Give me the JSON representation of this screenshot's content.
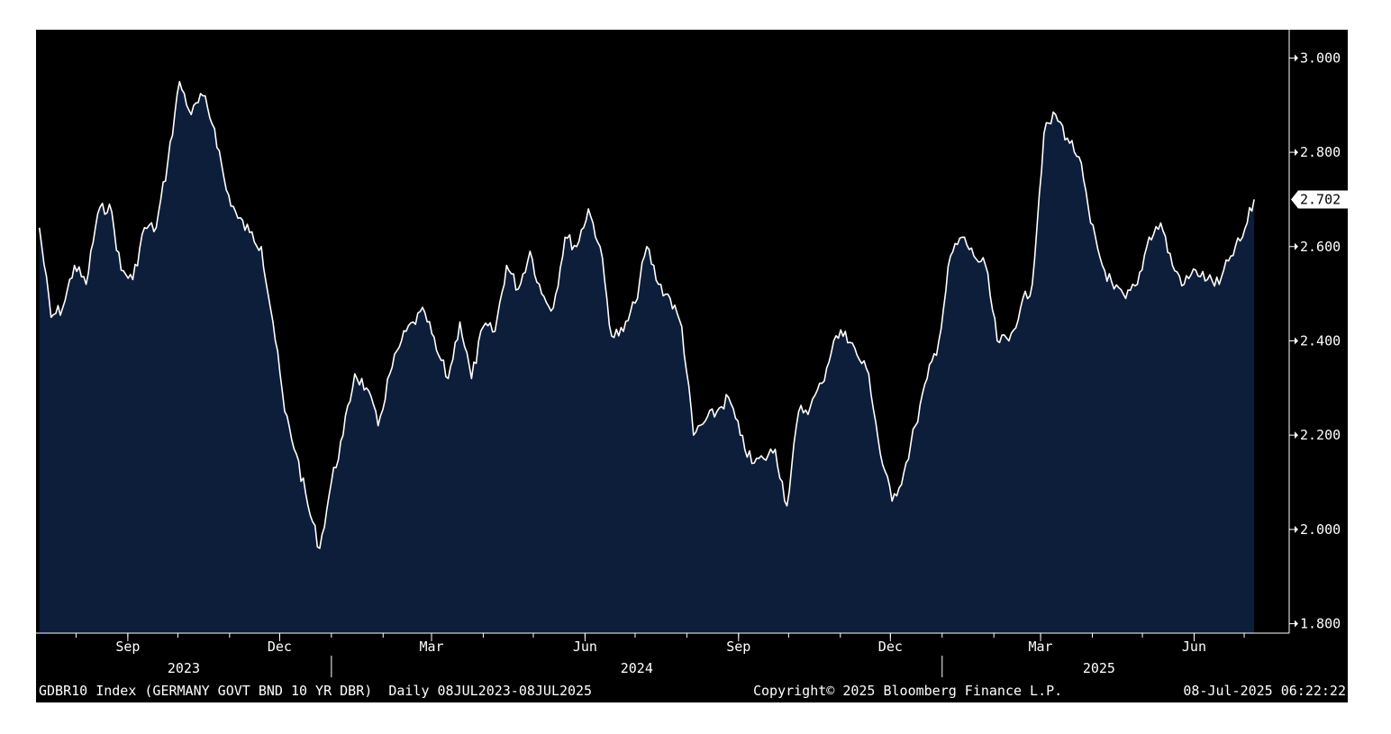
{
  "chart_data": {
    "type": "area",
    "title": "",
    "xlabel": "",
    "ylabel": "",
    "ylim": [
      1.78,
      3.06
    ],
    "y_ticks": [
      1.8,
      2.0,
      2.2,
      2.4,
      2.6,
      2.8,
      3.0
    ],
    "y_tick_labels": [
      "1.800",
      "2.000",
      "2.200",
      "2.400",
      "2.600",
      "2.800",
      "3.000"
    ],
    "x_range": [
      "2023-07-08",
      "2025-07-08"
    ],
    "month_labels": [
      {
        "date": "2023-09-01",
        "label": "Sep"
      },
      {
        "date": "2023-12-01",
        "label": "Dec"
      },
      {
        "date": "2024-03-01",
        "label": "Mar"
      },
      {
        "date": "2024-06-01",
        "label": "Jun"
      },
      {
        "date": "2024-09-01",
        "label": "Sep"
      },
      {
        "date": "2024-12-01",
        "label": "Dec"
      },
      {
        "date": "2025-03-01",
        "label": "Mar"
      },
      {
        "date": "2025-06-01",
        "label": "Jun"
      }
    ],
    "year_labels": [
      {
        "label": "2023",
        "start": "2023-07-08",
        "end": "2024-01-01"
      },
      {
        "label": "2024",
        "start": "2024-01-01",
        "end": "2025-01-01"
      },
      {
        "label": "2025",
        "start": "2025-01-01",
        "end": "2025-07-08"
      }
    ],
    "series": [
      {
        "name": "",
        "color": "#ffffff",
        "fill": "#0d1e3b",
        "x": [
          "2023-07-10",
          "2023-07-17",
          "2023-07-24",
          "2023-07-31",
          "2023-08-07",
          "2023-08-14",
          "2023-08-21",
          "2023-08-28",
          "2023-09-04",
          "2023-09-11",
          "2023-09-18",
          "2023-09-25",
          "2023-10-02",
          "2023-10-09",
          "2023-10-16",
          "2023-10-23",
          "2023-10-30",
          "2023-11-06",
          "2023-11-13",
          "2023-11-20",
          "2023-11-27",
          "2023-12-04",
          "2023-12-11",
          "2023-12-18",
          "2023-12-25",
          "2024-01-01",
          "2024-01-08",
          "2024-01-15",
          "2024-01-22",
          "2024-01-29",
          "2024-02-05",
          "2024-02-12",
          "2024-02-19",
          "2024-02-26",
          "2024-03-04",
          "2024-03-11",
          "2024-03-18",
          "2024-03-25",
          "2024-04-01",
          "2024-04-08",
          "2024-04-15",
          "2024-04-22",
          "2024-04-29",
          "2024-05-06",
          "2024-05-13",
          "2024-05-20",
          "2024-05-27",
          "2024-06-03",
          "2024-06-10",
          "2024-06-17",
          "2024-06-24",
          "2024-07-01",
          "2024-07-08",
          "2024-07-15",
          "2024-07-22",
          "2024-07-29",
          "2024-08-05",
          "2024-08-12",
          "2024-08-19",
          "2024-08-26",
          "2024-09-02",
          "2024-09-09",
          "2024-09-16",
          "2024-09-23",
          "2024-09-30",
          "2024-10-07",
          "2024-10-14",
          "2024-10-21",
          "2024-10-28",
          "2024-11-04",
          "2024-11-11",
          "2024-11-18",
          "2024-11-25",
          "2024-12-02",
          "2024-12-09",
          "2024-12-16",
          "2024-12-23",
          "2024-12-30",
          "2025-01-06",
          "2025-01-13",
          "2025-01-20",
          "2025-01-27",
          "2025-02-03",
          "2025-02-10",
          "2025-02-17",
          "2025-02-24",
          "2025-03-03",
          "2025-03-10",
          "2025-03-17",
          "2025-03-24",
          "2025-03-31",
          "2025-04-07",
          "2025-04-14",
          "2025-04-21",
          "2025-04-28",
          "2025-05-05",
          "2025-05-12",
          "2025-05-19",
          "2025-05-26",
          "2025-06-02",
          "2025-06-09",
          "2025-06-16",
          "2025-06-23",
          "2025-06-30",
          "2025-07-07"
        ],
        "values": [
          2.64,
          2.45,
          2.47,
          2.56,
          2.52,
          2.67,
          2.69,
          2.55,
          2.53,
          2.64,
          2.64,
          2.78,
          2.95,
          2.88,
          2.92,
          2.85,
          2.72,
          2.66,
          2.63,
          2.6,
          2.44,
          2.25,
          2.16,
          2.05,
          1.96,
          2.1,
          2.2,
          2.33,
          2.3,
          2.22,
          2.33,
          2.4,
          2.44,
          2.46,
          2.38,
          2.32,
          2.44,
          2.32,
          2.43,
          2.42,
          2.56,
          2.51,
          2.59,
          2.5,
          2.47,
          2.62,
          2.6,
          2.68,
          2.6,
          2.41,
          2.42,
          2.48,
          2.6,
          2.52,
          2.49,
          2.43,
          2.2,
          2.23,
          2.25,
          2.28,
          2.2,
          2.14,
          2.15,
          2.17,
          2.05,
          2.25,
          2.26,
          2.31,
          2.4,
          2.42,
          2.37,
          2.33,
          2.16,
          2.06,
          2.12,
          2.22,
          2.32,
          2.4,
          2.58,
          2.62,
          2.58,
          2.56,
          2.4,
          2.4,
          2.47,
          2.52,
          2.84,
          2.88,
          2.83,
          2.79,
          2.65,
          2.56,
          2.51,
          2.49,
          2.52,
          2.62,
          2.65,
          2.56,
          2.52,
          2.55,
          2.53,
          2.52,
          2.58,
          2.62,
          2.7
        ]
      }
    ],
    "last_value_label": "2.702",
    "footer": {
      "left": "GDBR10 Index (GERMANY GOVT BND 10 YR DBR)  Daily 08JUL2023-08JUL2025",
      "center": "Copyright© 2025 Bloomberg Finance L.P.",
      "right": "08-Jul-2025 06:22:22"
    },
    "colors": {
      "background": "#000000",
      "area_fill": "#0d1e3b",
      "line": "#ffffff",
      "text": "#ffffff"
    }
  }
}
